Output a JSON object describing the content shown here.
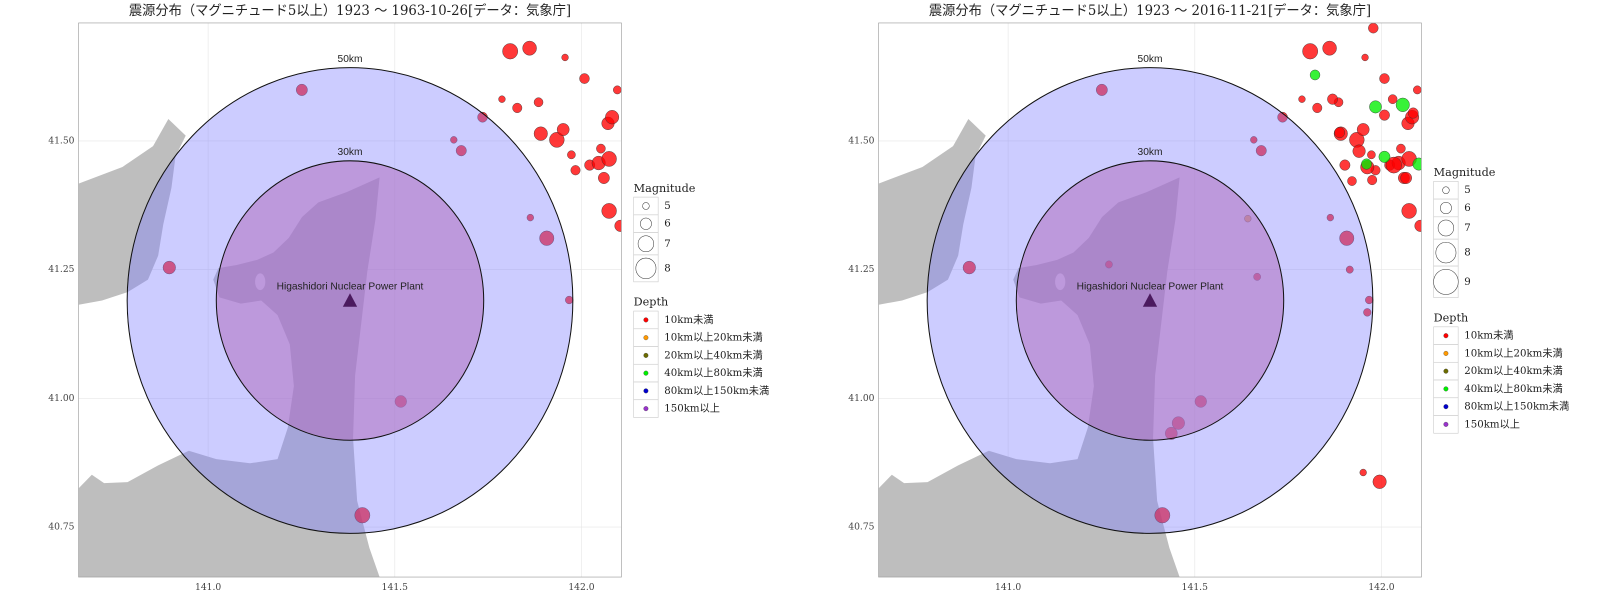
{
  "chart_data": [
    {
      "type": "scatter",
      "title": "震源分布（マグニチュード5以上）1923 ～ 1963-10-26[データ：気象庁]",
      "xlim": [
        140.653,
        142.107
      ],
      "ylim": [
        40.653,
        41.729
      ],
      "xticks": [
        {
          "value": 141,
          "label": "141.0"
        },
        141.5,
        {
          "value": 142,
          "label": "142.0"
        }
      ],
      "yticks": [
        40.75,
        {
          "value": 41,
          "label": "41.00"
        },
        41.25,
        {
          "value": 41.5,
          "label": "41.50"
        }
      ],
      "grid": true,
      "rings": [
        {
          "value": 30,
          "label": "30km"
        },
        {
          "value": 50,
          "label": "50km"
        }
      ],
      "site": {
        "label": "Higashidori Nuclear Power Plant",
        "x": 141.38,
        "y": 41.19
      },
      "size_legend": {
        "title": "Magnitude",
        "ticks": [
          5,
          6,
          7,
          8
        ]
      },
      "color_legend_title": "Depth",
      "series": [
        {
          "name": "10km未満",
          "color": "#ff0000",
          "x": [
            141.251,
            140.896,
            141.516,
            141.413,
            141.907,
            141.863,
            141.967,
            141.735,
            141.658,
            141.678,
            141.809,
            141.861,
            141.956,
            142.008,
            141.787,
            141.828,
            141.885,
            141.891,
            141.934,
            141.951,
            141.973,
            141.984,
            142.022,
            142.046,
            142.074,
            142.06,
            142.071,
            142.082,
            142.096,
            142.074,
            142.052,
            142.104
          ],
          "y": [
            41.599,
            41.254,
            40.994,
            40.773,
            41.311,
            41.351,
            41.191,
            41.546,
            41.502,
            41.481,
            41.674,
            41.68,
            41.662,
            41.621,
            41.581,
            41.564,
            41.575,
            41.514,
            41.502,
            41.522,
            41.473,
            41.443,
            41.453,
            41.457,
            41.465,
            41.428,
            41.534,
            41.546,
            41.599,
            41.364,
            41.485,
            41.335
          ],
          "size": [
            6,
            6.3,
            6.1,
            6.9,
            6.7,
            5,
            5.2,
            5.7,
            5,
            5.8,
            6.9,
            6.6,
            5,
            5.7,
            5,
            5.6,
            5.5,
            6.5,
            6.8,
            6.2,
            5.3,
            5.6,
            5.8,
            6.5,
            6.8,
            6,
            6.3,
            6.5,
            5.3,
            6.8,
            5.5,
            6
          ]
        },
        {
          "name": "10km以上20km未満",
          "color": "#ff9900",
          "x": [],
          "y": [],
          "size": []
        },
        {
          "name": "20km以上40km未満",
          "color": "#6b6b00",
          "x": [],
          "y": [],
          "size": []
        },
        {
          "name": "40km以上80km未満",
          "color": "#00ee00",
          "x": [],
          "y": [],
          "size": []
        },
        {
          "name": "80km以上150km未満",
          "color": "#0000cc",
          "x": [],
          "y": [],
          "size": []
        },
        {
          "name": "150km以上",
          "color": "#9933cc",
          "x": [],
          "y": [],
          "size": []
        }
      ]
    },
    {
      "type": "scatter",
      "title": "震源分布（マグニチュード5以上）1923 ～ 2016-11-21[データ：気象庁]",
      "xlim": [
        140.653,
        142.107
      ],
      "ylim": [
        40.653,
        41.729
      ],
      "xticks": [
        {
          "value": 141,
          "label": "141.0"
        },
        141.5,
        {
          "value": 142,
          "label": "142.0"
        }
      ],
      "yticks": [
        40.75,
        {
          "value": 41,
          "label": "41.00"
        },
        41.25,
        {
          "value": 41.5,
          "label": "41.50"
        }
      ],
      "grid": true,
      "rings": [
        {
          "value": 30,
          "label": "30km"
        },
        {
          "value": 50,
          "label": "50km"
        }
      ],
      "site": {
        "label": "Higashidori Nuclear Power Plant",
        "x": 141.38,
        "y": 41.19
      },
      "size_legend": {
        "title": "Magnitude",
        "ticks": [
          5,
          6,
          7,
          8,
          9
        ]
      },
      "color_legend_title": "Depth",
      "series": [
        {
          "name": "10km未満",
          "color": "#ff0000",
          "x": [
            141.251,
            140.896,
            141.516,
            141.413,
            141.907,
            141.863,
            141.967,
            141.735,
            141.658,
            141.678,
            141.809,
            141.861,
            141.956,
            142.008,
            141.787,
            141.828,
            141.885,
            141.891,
            141.934,
            141.951,
            141.973,
            141.984,
            142.022,
            142.046,
            142.074,
            142.06,
            142.071,
            142.082,
            142.096,
            142.074,
            142.052,
            142.104,
            141.27,
            141.667,
            141.437,
            141.456,
            141.951,
            141.995,
            141.915,
            141.962,
            141.94,
            141.888,
            141.962,
            142.033,
            141.902,
            141.975,
            142.008,
            141.869,
            142.03,
            142.085,
            141.921,
            142.066,
            141.978
          ],
          "y": [
            41.599,
            41.254,
            40.994,
            40.773,
            41.311,
            41.351,
            41.191,
            41.546,
            41.502,
            41.481,
            41.674,
            41.68,
            41.662,
            41.621,
            41.581,
            41.564,
            41.575,
            41.514,
            41.502,
            41.522,
            41.473,
            41.443,
            41.453,
            41.457,
            41.465,
            41.428,
            41.534,
            41.546,
            41.599,
            41.364,
            41.485,
            41.335,
            41.26,
            41.236,
            40.932,
            40.952,
            40.856,
            40.838,
            41.25,
            41.167,
            41.48,
            41.516,
            41.449,
            41.453,
            41.453,
            41.424,
            41.55,
            41.581,
            41.581,
            41.554,
            41.422,
            41.428,
            41.719
          ],
          "size": [
            6,
            6.3,
            6.1,
            6.9,
            6.7,
            5,
            5.2,
            5.7,
            5,
            5.8,
            6.9,
            6.6,
            5,
            5.7,
            5,
            5.6,
            5.5,
            6.5,
            6.8,
            6.2,
            5.3,
            5.6,
            5.8,
            6.5,
            6.8,
            6,
            6.3,
            6.5,
            5.3,
            6.8,
            5.5,
            6,
            5.1,
            5.1,
            6.2,
            6.3,
            5,
            6.5,
            5.1,
            5.2,
            6.3,
            5.8,
            6.5,
            7,
            5.8,
            5.6,
            5.8,
            5.8,
            5.5,
            5.8,
            5.5,
            6,
            5.7
          ]
        },
        {
          "name": "10km以上20km未満",
          "color": "#ff9900",
          "x": [
            141.642
          ],
          "y": [
            41.349
          ],
          "size": [
            5
          ]
        },
        {
          "name": "20km以上40km未満",
          "color": "#6b6b00",
          "x": [],
          "y": [],
          "size": []
        },
        {
          "name": "40km以上80km未満",
          "color": "#00ee00",
          "x": [
            141.822,
            141.984,
            142.057,
            142.008,
            141.96,
            142.1
          ],
          "y": [
            41.628,
            41.566,
            41.57,
            41.469,
            41.455,
            41.455
          ],
          "size": [
            5.7,
            6.2,
            6.5,
            6,
            5.8,
            6.2
          ]
        },
        {
          "name": "80km以上150km未満",
          "color": "#0000cc",
          "x": [],
          "y": [],
          "size": []
        },
        {
          "name": "150km以上",
          "color": "#9933cc",
          "x": [],
          "y": [],
          "size": []
        }
      ]
    }
  ]
}
